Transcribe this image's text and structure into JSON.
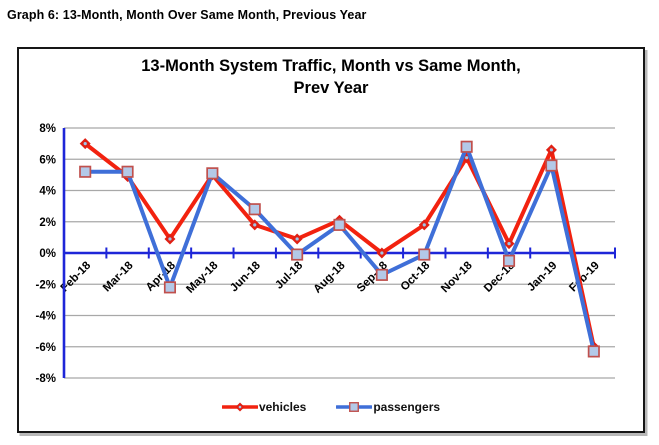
{
  "page": {
    "header": "Graph 6: 13-Month, Month Over Same Month, Previous Year"
  },
  "chart": {
    "title_line1": "13-Month System Traffic, Month vs Same Month,",
    "title_line2": "Prev Year"
  },
  "chart_data": {
    "type": "line",
    "title": "13-Month System Traffic, Month vs Same Month, Prev Year",
    "categories": [
      "Feb-18",
      "Mar-18",
      "Apr-18",
      "May-18",
      "Jun-18",
      "Jul-18",
      "Aug-18",
      "Sep-18",
      "Oct-18",
      "Nov-18",
      "Dec-18",
      "Jan-19",
      "Feb-19"
    ],
    "series": [
      {
        "name": "vehicles",
        "color": "#F2220F",
        "marker": "diamond",
        "marker_fill": "#E02014",
        "marker_center_dot": "#9FC5E8",
        "values": [
          7.0,
          4.9,
          0.9,
          5.0,
          1.8,
          0.9,
          2.1,
          0.0,
          1.8,
          6.1,
          0.6,
          6.6,
          -6.0
        ]
      },
      {
        "name": "passengers",
        "color": "#3F6FD8",
        "marker": "square",
        "marker_fill": "#B3C9E8",
        "marker_border": "#C0504D",
        "values": [
          5.2,
          5.2,
          -2.2,
          5.1,
          2.8,
          -0.1,
          1.8,
          -1.4,
          -0.1,
          6.8,
          -0.5,
          5.6,
          -6.3
        ]
      }
    ],
    "ylim": [
      -8,
      8
    ],
    "ytick_step": 2,
    "ytick_labels": [
      "8%",
      "6%",
      "4%",
      "2%",
      "0%",
      "-2%",
      "-4%",
      "-6%",
      "-8%"
    ],
    "grid": true,
    "legend_position": "bottom",
    "xlabel": "",
    "ylabel": "",
    "colors": {
      "axis": "#1E26D8",
      "grid": "#A8A8A8",
      "text": "#000000"
    }
  }
}
